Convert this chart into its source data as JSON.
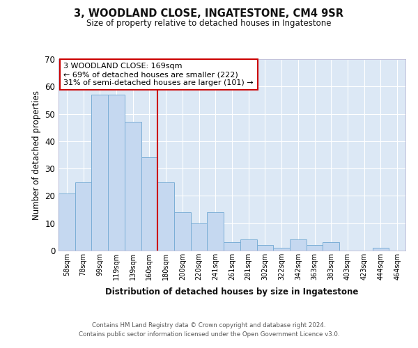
{
  "title": "3, WOODLAND CLOSE, INGATESTONE, CM4 9SR",
  "subtitle": "Size of property relative to detached houses in Ingatestone",
  "xlabel": "Distribution of detached houses by size in Ingatestone",
  "ylabel": "Number of detached properties",
  "categories": [
    "58sqm",
    "78sqm",
    "99sqm",
    "119sqm",
    "139sqm",
    "160sqm",
    "180sqm",
    "200sqm",
    "220sqm",
    "241sqm",
    "261sqm",
    "281sqm",
    "302sqm",
    "322sqm",
    "342sqm",
    "363sqm",
    "383sqm",
    "403sqm",
    "423sqm",
    "444sqm",
    "464sqm"
  ],
  "values": [
    21,
    25,
    57,
    57,
    47,
    34,
    25,
    14,
    10,
    14,
    3,
    4,
    2,
    1,
    4,
    2,
    3,
    0,
    0,
    1,
    0
  ],
  "bar_color": "#c5d8f0",
  "bar_edge_color": "#7baed6",
  "vline_x": 5.5,
  "vline_color": "#cc0000",
  "annotation_title": "3 WOODLAND CLOSE: 169sqm",
  "annotation_line1": "← 69% of detached houses are smaller (222)",
  "annotation_line2": "31% of semi-detached houses are larger (101) →",
  "annotation_box_color": "#ffffff",
  "annotation_box_edge": "#cc0000",
  "ylim": [
    0,
    70
  ],
  "yticks": [
    0,
    10,
    20,
    30,
    40,
    50,
    60,
    70
  ],
  "background_color": "#dce8f5",
  "fig_background": "#ffffff",
  "footer1": "Contains HM Land Registry data © Crown copyright and database right 2024.",
  "footer2": "Contains public sector information licensed under the Open Government Licence v3.0."
}
